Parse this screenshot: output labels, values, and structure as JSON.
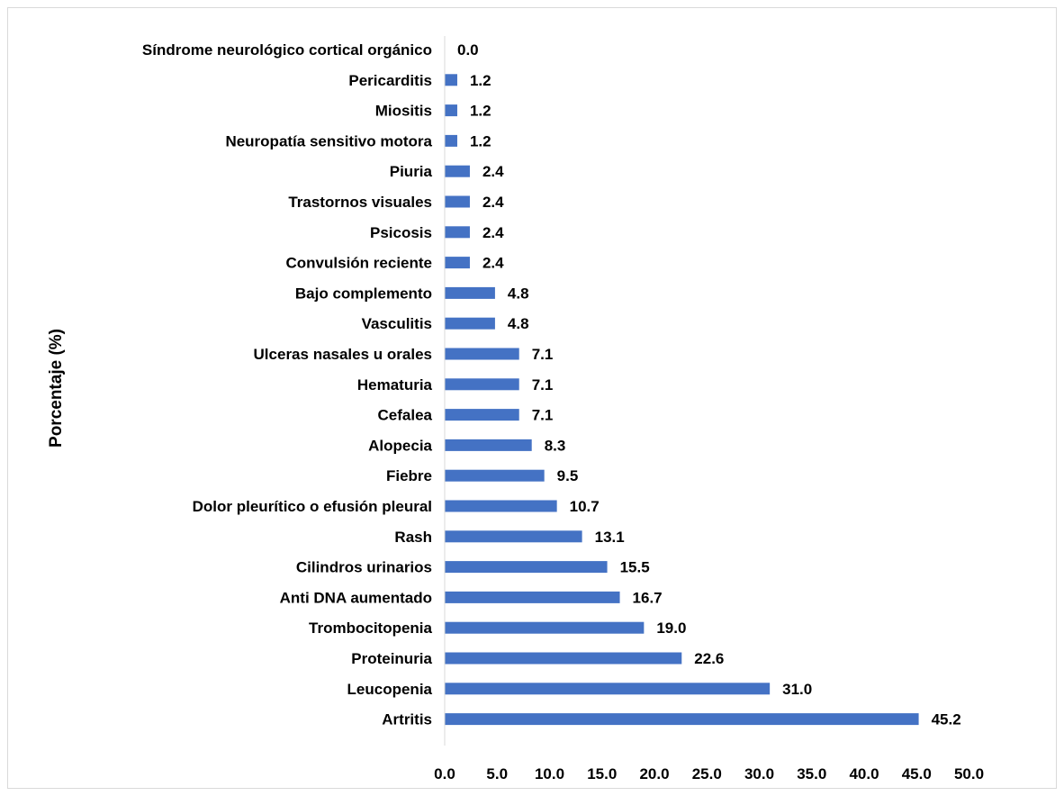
{
  "chart_data": {
    "type": "bar",
    "orientation": "horizontal",
    "categories": [
      "Síndrome neurológico cortical orgánico",
      "Pericarditis",
      "Miositis",
      "Neuropatía sensitivo motora",
      "Piuria",
      "Trastornos visuales",
      "Psicosis",
      "Convulsión reciente",
      "Bajo complemento",
      "Vasculitis",
      "Ulceras nasales u orales",
      "Hematuria",
      "Cefalea",
      "Alopecia",
      "Fiebre",
      "Dolor pleurítico o efusión pleural",
      "Rash",
      "Cilindros urinarios",
      "Anti DNA aumentado",
      "Trombocitopenia",
      "Proteinuria",
      "Leucopenia",
      "Artritis"
    ],
    "values": [
      0.0,
      1.2,
      1.2,
      1.2,
      2.4,
      2.4,
      2.4,
      2.4,
      4.8,
      4.8,
      7.1,
      7.1,
      7.1,
      8.3,
      9.5,
      10.7,
      13.1,
      15.5,
      16.7,
      19.0,
      22.6,
      31.0,
      45.2
    ],
    "value_labels": [
      "0.0",
      "1.2",
      "1.2",
      "1.2",
      "2.4",
      "2.4",
      "2.4",
      "2.4",
      "4.8",
      "4.8",
      "7.1",
      "7.1",
      "7.1",
      "8.3",
      "9.5",
      "10.7",
      "13.1",
      "15.5",
      "16.7",
      "19.0",
      "22.6",
      "31.0",
      "45.2"
    ],
    "xticks": [
      0,
      5,
      10,
      15,
      20,
      25,
      30,
      35,
      40,
      45,
      50
    ],
    "xtick_labels": [
      "0.0",
      "5.0",
      "10.0",
      "15.0",
      "20.0",
      "25.0",
      "30.0",
      "35.0",
      "40.0",
      "45.0",
      "50.0"
    ],
    "xlim": [
      0,
      50
    ],
    "ylabel": "Porcentaje (%)",
    "xlabel": "",
    "title": "",
    "grid": false,
    "legend": "none",
    "bar_color": "#4472C4",
    "axis_color": "#d9d9d9"
  }
}
